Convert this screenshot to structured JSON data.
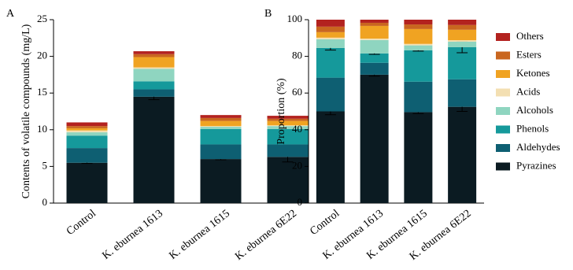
{
  "chart_data": [
    {
      "type": "stacked_bar",
      "panel": "A",
      "ylabel": "Contents of volatile compounds (mg/L)",
      "categories": [
        "Control",
        "K. eburnea 1613",
        "K. eburnea 1615",
        "K. eburnea 6E22"
      ],
      "ylim": [
        0,
        25
      ],
      "yticks": [
        0,
        5,
        10,
        15,
        20,
        25
      ],
      "series": [
        {
          "name": "Pyrazines",
          "color": "#0b1b22",
          "values": [
            5.5,
            14.5,
            6.0,
            6.3
          ],
          "errors": [
            0.1,
            0.4,
            0.1,
            0.7
          ]
        },
        {
          "name": "Aldehydes",
          "color": "#0e5f72",
          "values": [
            2.0,
            1.0,
            2.0,
            1.7
          ]
        },
        {
          "name": "Phenols",
          "color": "#15999b",
          "values": [
            1.7,
            1.1,
            2.1,
            2.1
          ]
        },
        {
          "name": "Alcohols",
          "color": "#8fd5c0",
          "values": [
            0.45,
            1.7,
            0.3,
            0.4
          ]
        },
        {
          "name": "Acids",
          "color": "#f3dfb2",
          "values": [
            0.25,
            0.2,
            0.1,
            0.1
          ]
        },
        {
          "name": "Ketones",
          "color": "#f0a322",
          "values": [
            0.3,
            1.4,
            0.7,
            0.6
          ]
        },
        {
          "name": "Esters",
          "color": "#c9661f",
          "values": [
            0.3,
            0.4,
            0.4,
            0.3
          ]
        },
        {
          "name": "Others",
          "color": "#b3221f",
          "values": [
            0.5,
            0.4,
            0.4,
            0.4
          ]
        }
      ]
    },
    {
      "type": "stacked_bar",
      "panel": "B",
      "ylabel": "Proportion (%)",
      "categories": [
        "Control",
        "K. eburnea 1613",
        "K. eburnea 1615",
        "K. eburnea 6E22"
      ],
      "ylim": [
        0,
        100
      ],
      "yticks": [
        0,
        20,
        40,
        60,
        80,
        100
      ],
      "legend": "right",
      "series": [
        {
          "name": "Pyrazines",
          "color": "#0b1b22",
          "values": [
            50,
            70,
            49.6,
            52.5
          ],
          "errors": [
            1.8,
            0.8,
            0.8,
            2.5
          ]
        },
        {
          "name": "Aldehydes",
          "color": "#0e5f72",
          "values": [
            18.4,
            6.5,
            16.6,
            15.0
          ]
        },
        {
          "name": "Phenols",
          "color": "#15999b",
          "values": [
            16.2,
            5.1,
            17.1,
            17.5
          ],
          "errors": [
            1.2,
            0.5,
            0.4,
            3.0
          ]
        },
        {
          "name": "Alcohols",
          "color": "#8fd5c0",
          "values": [
            4.7,
            7.3,
            2.7,
            3.0
          ]
        },
        {
          "name": "Acids",
          "color": "#f3dfb2",
          "values": [
            0.9,
            0.8,
            0.8,
            0.8
          ]
        },
        {
          "name": "Ketones",
          "color": "#f0a322",
          "values": [
            3.0,
            6.9,
            8.1,
            5.7
          ]
        },
        {
          "name": "Esters",
          "color": "#c9661f",
          "values": [
            3.0,
            1.7,
            2.5,
            2.6
          ]
        },
        {
          "name": "Others",
          "color": "#b3221f",
          "values": [
            3.8,
            1.7,
            2.6,
            2.9
          ]
        }
      ]
    }
  ]
}
